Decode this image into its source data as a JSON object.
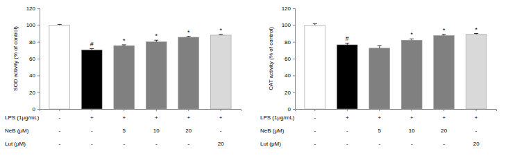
{
  "chart_data": [
    {
      "type": "bar",
      "y_label": "SOD activity (% of control)",
      "categories": [
        null,
        null,
        null,
        null,
        null,
        null
      ],
      "values": [
        100,
        70.5,
        75.5,
        80,
        85.5,
        88
      ],
      "errors": [
        0.8,
        1.5,
        1,
        2,
        1,
        1
      ],
      "significance": [
        null,
        "#",
        "*",
        "*",
        "*",
        "*"
      ],
      "colors": [
        "#ffffff",
        "#000000",
        "#808080",
        "#808080",
        "#808080",
        "#d9d9d9"
      ],
      "ylim": [
        0,
        120
      ],
      "yticks": [
        0,
        20,
        40,
        60,
        80,
        100,
        120
      ],
      "grid": false,
      "treatments": [
        {
          "name": "LPS (1μg/mL)",
          "values": [
            "-",
            "+",
            "+",
            "+",
            "+",
            "+"
          ]
        },
        {
          "name": "NeB (μM)",
          "values": [
            "-",
            "-",
            "5",
            "10",
            "20",
            "-"
          ]
        },
        {
          "name": "Lut (μM)",
          "values": [
            "-",
            "-",
            "-",
            "-",
            "-",
            "20"
          ]
        }
      ]
    },
    {
      "type": "bar",
      "y_label": "CAT activity (% of control)",
      "categories": [
        null,
        null,
        null,
        null,
        null,
        null
      ],
      "values": [
        100,
        76.5,
        72.5,
        82,
        87.5,
        89
      ],
      "errors": [
        1.5,
        2,
        3,
        1.5,
        1.5,
        1
      ],
      "significance": [
        null,
        "#",
        null,
        "*",
        "*",
        "*"
      ],
      "colors": [
        "#ffffff",
        "#000000",
        "#808080",
        "#808080",
        "#808080",
        "#d9d9d9"
      ],
      "ylim": [
        0,
        120
      ],
      "yticks": [
        0,
        20,
        40,
        60,
        80,
        100,
        120
      ],
      "grid": false,
      "treatments": [
        {
          "name": "LPS (1μg/mL)",
          "values": [
            "-",
            "+",
            "+",
            "+",
            "+",
            "+"
          ]
        },
        {
          "name": "NeB (μM)",
          "values": [
            "-",
            "-",
            "5",
            "10",
            "20",
            "-"
          ]
        },
        {
          "name": "Lut (μM)",
          "values": [
            "-",
            "-",
            "-",
            "-",
            "-",
            "20"
          ]
        }
      ]
    }
  ]
}
